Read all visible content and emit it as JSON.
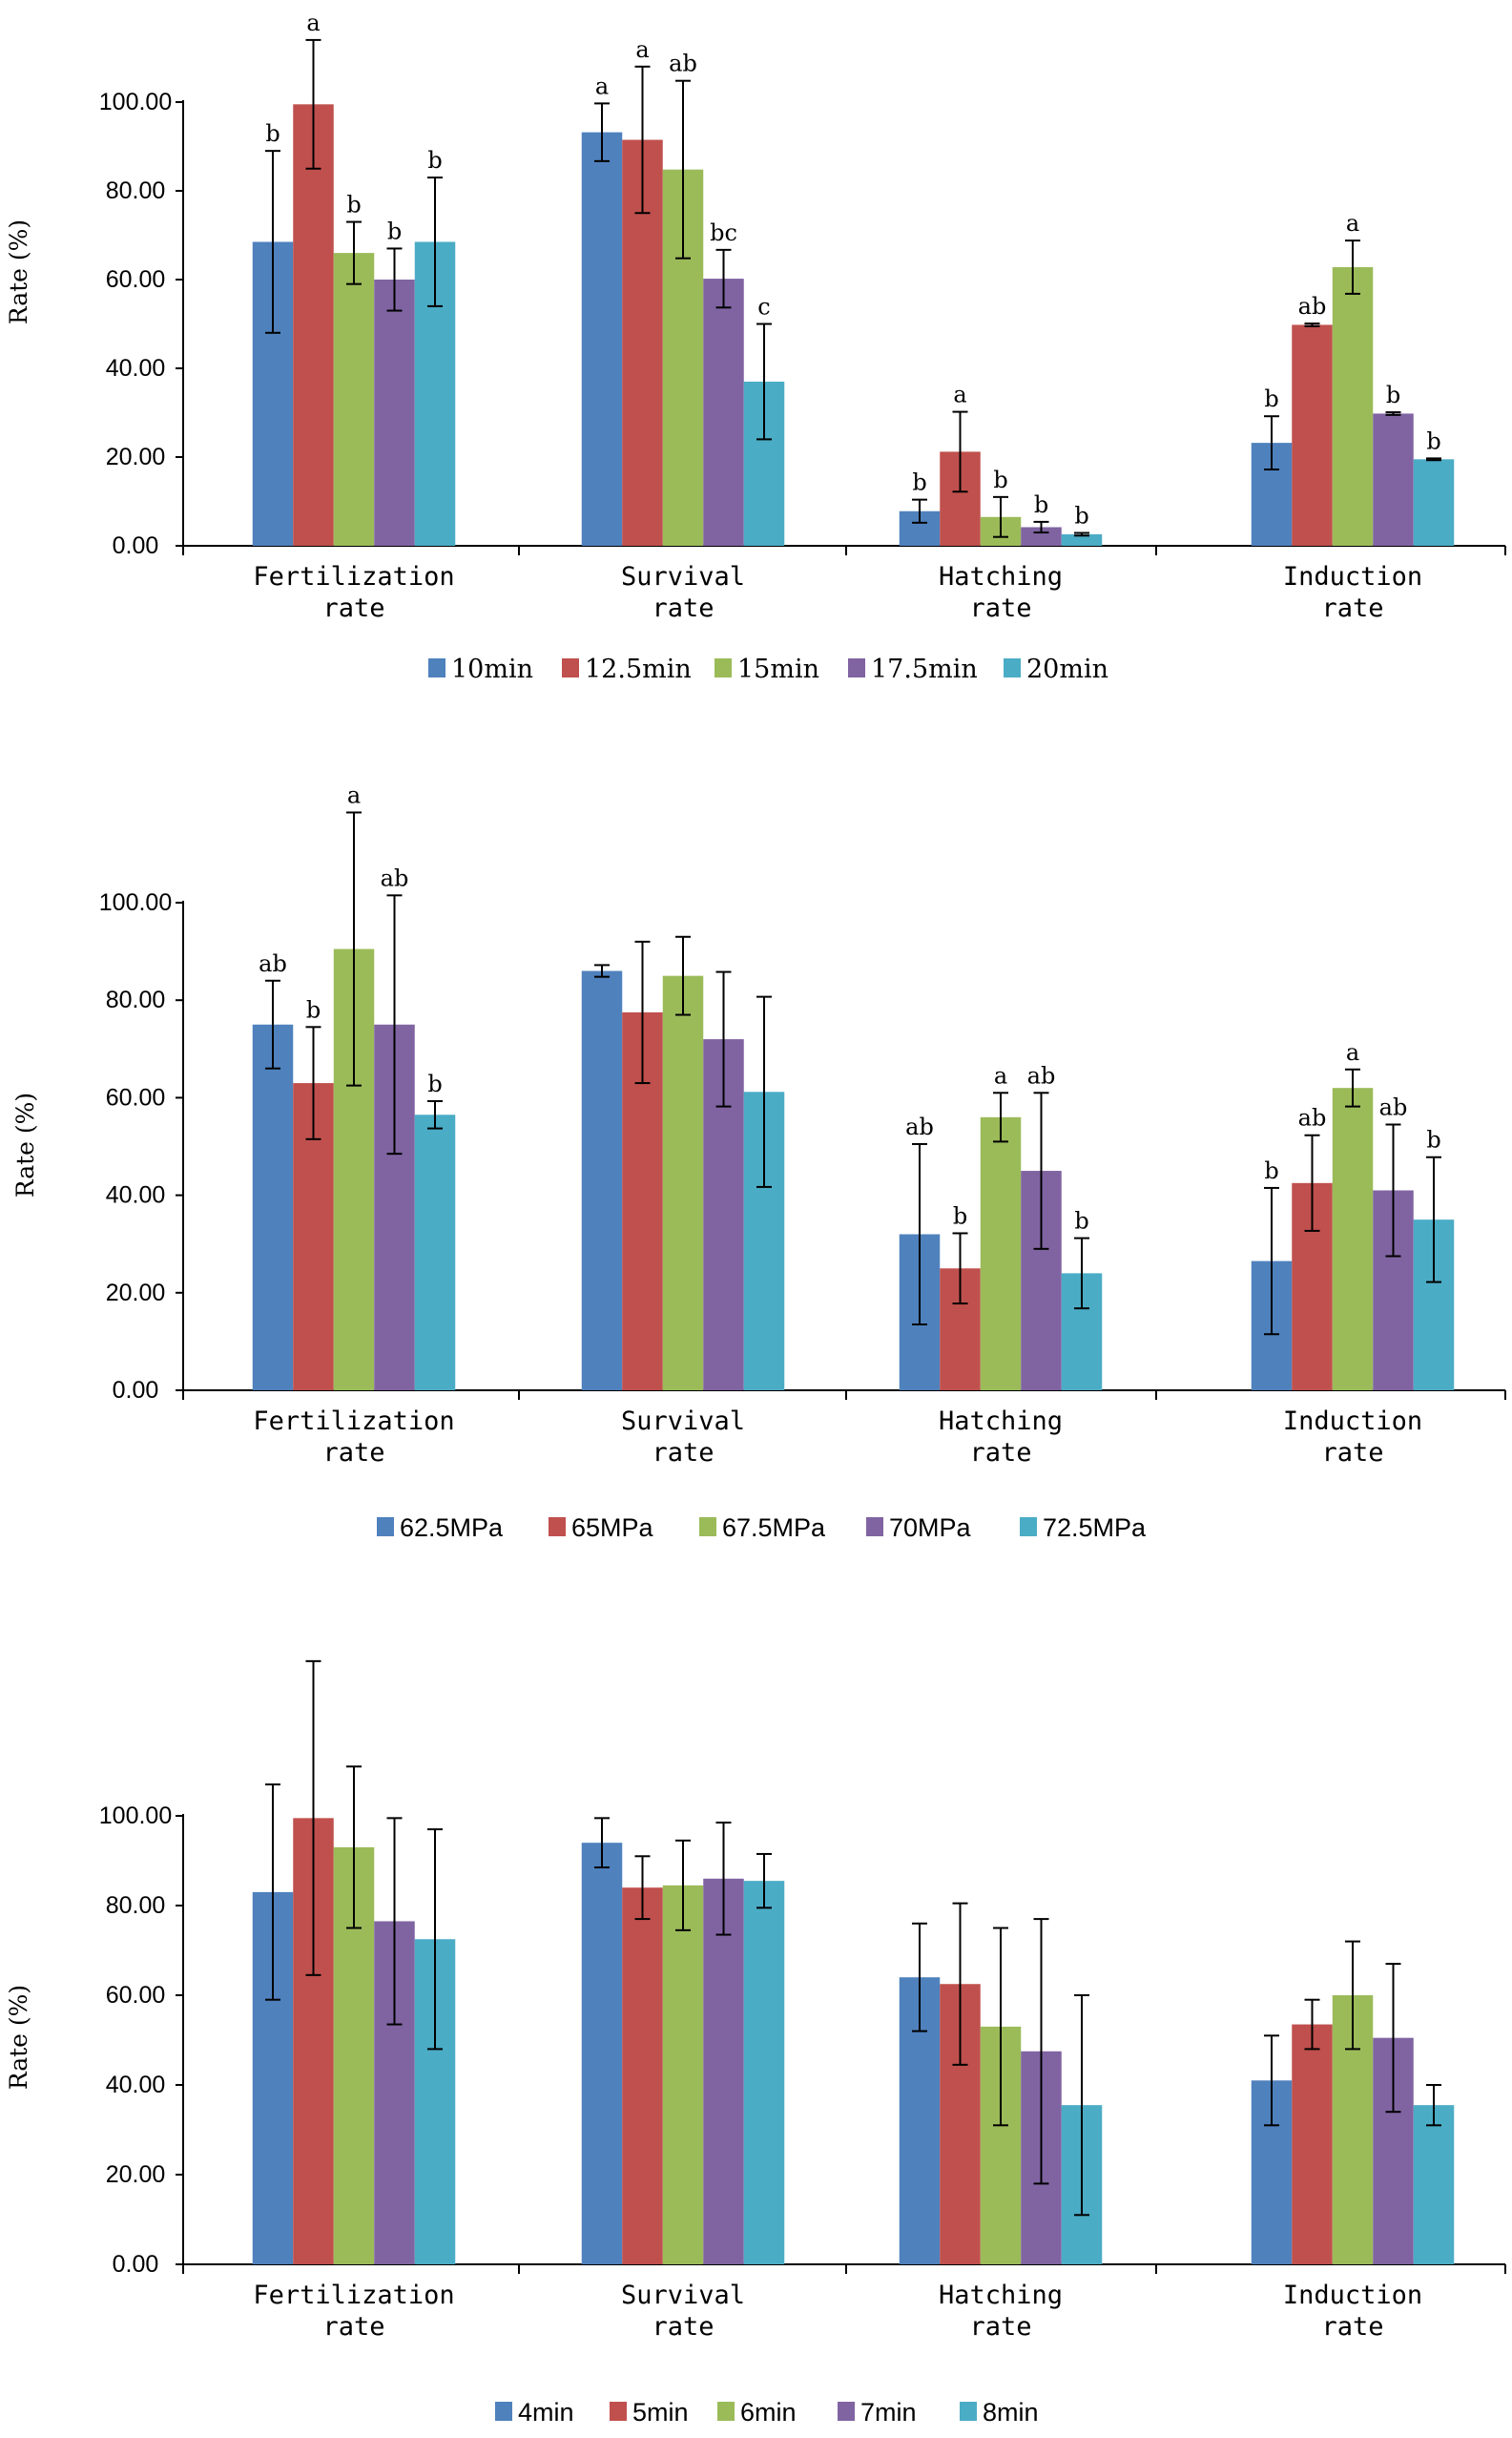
{
  "colors": {
    "series": [
      "#4F81BD",
      "#C0504D",
      "#9BBB59",
      "#8064A2",
      "#4BACC6"
    ]
  },
  "chart_data": [
    {
      "type": "bar",
      "title": "",
      "ylabel": "Rate (%)",
      "xlabel": "",
      "ylim": [
        0,
        100
      ],
      "ytick_labels": [
        "0.00",
        "20.00",
        "40.00",
        "60.00",
        "80.00",
        "100.00"
      ],
      "categories": [
        [
          "Fertilization",
          "rate"
        ],
        [
          "Survival",
          "rate"
        ],
        [
          "Hatching",
          "rate"
        ],
        [
          "Induction",
          "rate"
        ]
      ],
      "legend_position": "bottom",
      "series": [
        {
          "name": "10min",
          "values": [
            68.5,
            93.2,
            7.8,
            23.2
          ],
          "errors": [
            20.5,
            6.5,
            2.6,
            6.0
          ],
          "letters": [
            "b",
            "a",
            "b",
            "b"
          ]
        },
        {
          "name": "12.5min",
          "values": [
            99.5,
            91.5,
            21.2,
            49.8
          ],
          "errors": [
            14.5,
            16.5,
            9.0,
            0.3
          ],
          "letters": [
            "a",
            "a",
            "a",
            "ab"
          ]
        },
        {
          "name": "15min",
          "values": [
            66.0,
            84.8,
            6.5,
            62.8
          ],
          "errors": [
            7.0,
            20.0,
            4.5,
            6.0
          ],
          "letters": [
            "b",
            "ab",
            "b",
            "a"
          ]
        },
        {
          "name": "17.5min",
          "values": [
            60.0,
            60.2,
            4.2,
            29.8
          ],
          "errors": [
            7.0,
            6.5,
            1.2,
            0.3
          ],
          "letters": [
            "b",
            "bc",
            "b",
            "b"
          ]
        },
        {
          "name": "20min",
          "values": [
            68.5,
            37.0,
            2.6,
            19.5
          ],
          "errors": [
            14.5,
            13.0,
            0.3,
            0.2
          ],
          "letters": [
            "b",
            "c",
            "b",
            "b"
          ]
        }
      ]
    },
    {
      "type": "bar",
      "title": "",
      "ylabel": "Rate (%)",
      "xlabel": "",
      "ylim": [
        0,
        100
      ],
      "ytick_labels": [
        "0.00",
        "20.00",
        "40.00",
        "60.00",
        "80.00",
        "100.00"
      ],
      "categories": [
        [
          "Fertilization",
          "rate"
        ],
        [
          "Survival",
          "rate"
        ],
        [
          "Hatching",
          "rate"
        ],
        [
          "Induction",
          "rate"
        ]
      ],
      "legend_position": "bottom",
      "series": [
        {
          "name": "62.5MPa",
          "values": [
            75.0,
            86.0,
            32.0,
            26.5
          ],
          "errors": [
            9.0,
            1.2,
            18.5,
            15.0
          ],
          "letters": [
            "ab",
            "",
            "ab",
            "b"
          ]
        },
        {
          "name": "65MPa",
          "values": [
            63.0,
            77.5,
            25.0,
            42.5
          ],
          "errors": [
            11.5,
            14.5,
            7.2,
            9.8
          ],
          "letters": [
            "b",
            "",
            "b",
            "ab"
          ]
        },
        {
          "name": "67.5MPa",
          "values": [
            90.5,
            85.0,
            56.0,
            62.0
          ],
          "errors": [
            28.0,
            8.0,
            5.0,
            3.8
          ],
          "letters": [
            "a",
            "",
            "a",
            "a"
          ]
        },
        {
          "name": "70MPa",
          "values": [
            75.0,
            72.0,
            45.0,
            41.0
          ],
          "errors": [
            26.5,
            13.8,
            16.0,
            13.5
          ],
          "letters": [
            "ab",
            "",
            "ab",
            "ab"
          ]
        },
        {
          "name": "72.5MPa",
          "values": [
            56.5,
            61.2,
            24.0,
            35.0
          ],
          "errors": [
            2.8,
            19.5,
            7.2,
            12.8
          ],
          "letters": [
            "b",
            "",
            "b",
            "b"
          ]
        }
      ]
    },
    {
      "type": "bar",
      "title": "",
      "ylabel": "Rate (%)",
      "xlabel": "",
      "ylim": [
        0,
        100
      ],
      "ytick_labels": [
        "0.00",
        "20.00",
        "40.00",
        "60.00",
        "80.00",
        "100.00"
      ],
      "categories": [
        [
          "Fertilization",
          "rate"
        ],
        [
          "Survival",
          "rate"
        ],
        [
          "Hatching",
          "rate"
        ],
        [
          "Induction",
          "rate"
        ]
      ],
      "legend_position": "bottom",
      "series": [
        {
          "name": "4min",
          "values": [
            83.0,
            94.0,
            64.0,
            41.0
          ],
          "errors": [
            24.0,
            5.5,
            12.0,
            10.0
          ],
          "letters": [
            "",
            "",
            "",
            ""
          ]
        },
        {
          "name": "5min",
          "values": [
            99.5,
            84.0,
            62.5,
            53.5
          ],
          "errors": [
            35.0,
            7.0,
            18.0,
            5.5
          ],
          "letters": [
            "",
            "",
            "",
            ""
          ]
        },
        {
          "name": "6min",
          "values": [
            93.0,
            84.5,
            53.0,
            60.0
          ],
          "errors": [
            18.0,
            10.0,
            22.0,
            12.0
          ],
          "letters": [
            "",
            "",
            "",
            ""
          ]
        },
        {
          "name": "7min",
          "values": [
            76.5,
            86.0,
            47.5,
            50.5
          ],
          "errors": [
            23.0,
            12.5,
            29.5,
            16.5
          ],
          "letters": [
            "",
            "",
            "",
            ""
          ]
        },
        {
          "name": "8min",
          "values": [
            72.5,
            85.5,
            35.5,
            35.5
          ],
          "errors": [
            24.5,
            6.0,
            24.5,
            4.5
          ],
          "letters": [
            "",
            "",
            "",
            ""
          ]
        }
      ]
    }
  ]
}
